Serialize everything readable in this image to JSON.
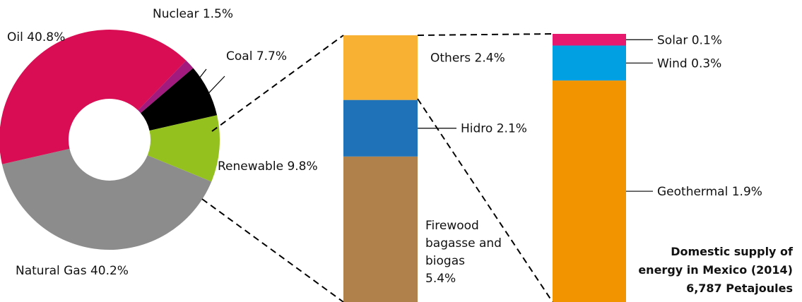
{
  "chart_data": [
    {
      "type": "pie",
      "slices": [
        {
          "label": "Nuclear 1.5%",
          "value": 1.5,
          "color": "#a31a7f"
        },
        {
          "label": "Coal 7.7%",
          "value": 7.7,
          "color": "#000000"
        },
        {
          "label": "Renewable 9.8%",
          "value": 9.8,
          "color": "#95c11f"
        },
        {
          "label": "Natural Gas 40.2%",
          "value": 40.2,
          "color": "#8c8c8c"
        },
        {
          "label": "Oil 40.8%",
          "value": 40.8,
          "color": "#d90d53"
        }
      ]
    },
    {
      "type": "bar",
      "stacked": true,
      "segments": [
        {
          "label": "Firewood bagasse and biogas 5.4%",
          "lines": [
            "Firewood",
            "bagasse and",
            "biogas",
            "5.4%"
          ],
          "value": 5.4,
          "color": "#b0814a"
        },
        {
          "label": "Hidro 2.1%",
          "value": 2.1,
          "color": "#1f72b8"
        },
        {
          "label": "Others 2.4%",
          "value": 2.4,
          "color": "#f8b133"
        }
      ]
    },
    {
      "type": "bar",
      "stacked": true,
      "segments": [
        {
          "label": "Geothermal 1.9%",
          "value": 1.9,
          "color": "#f29400"
        },
        {
          "label": "Wind 0.3%",
          "value": 0.3,
          "color": "#00a0e3"
        },
        {
          "label": "Solar 0.1%",
          "value": 0.1,
          "color": "#e6196e"
        }
      ]
    }
  ],
  "title_lines": [
    "Domestic supply of",
    "energy in Mexico (2014)",
    "6,787 Petajoules"
  ]
}
